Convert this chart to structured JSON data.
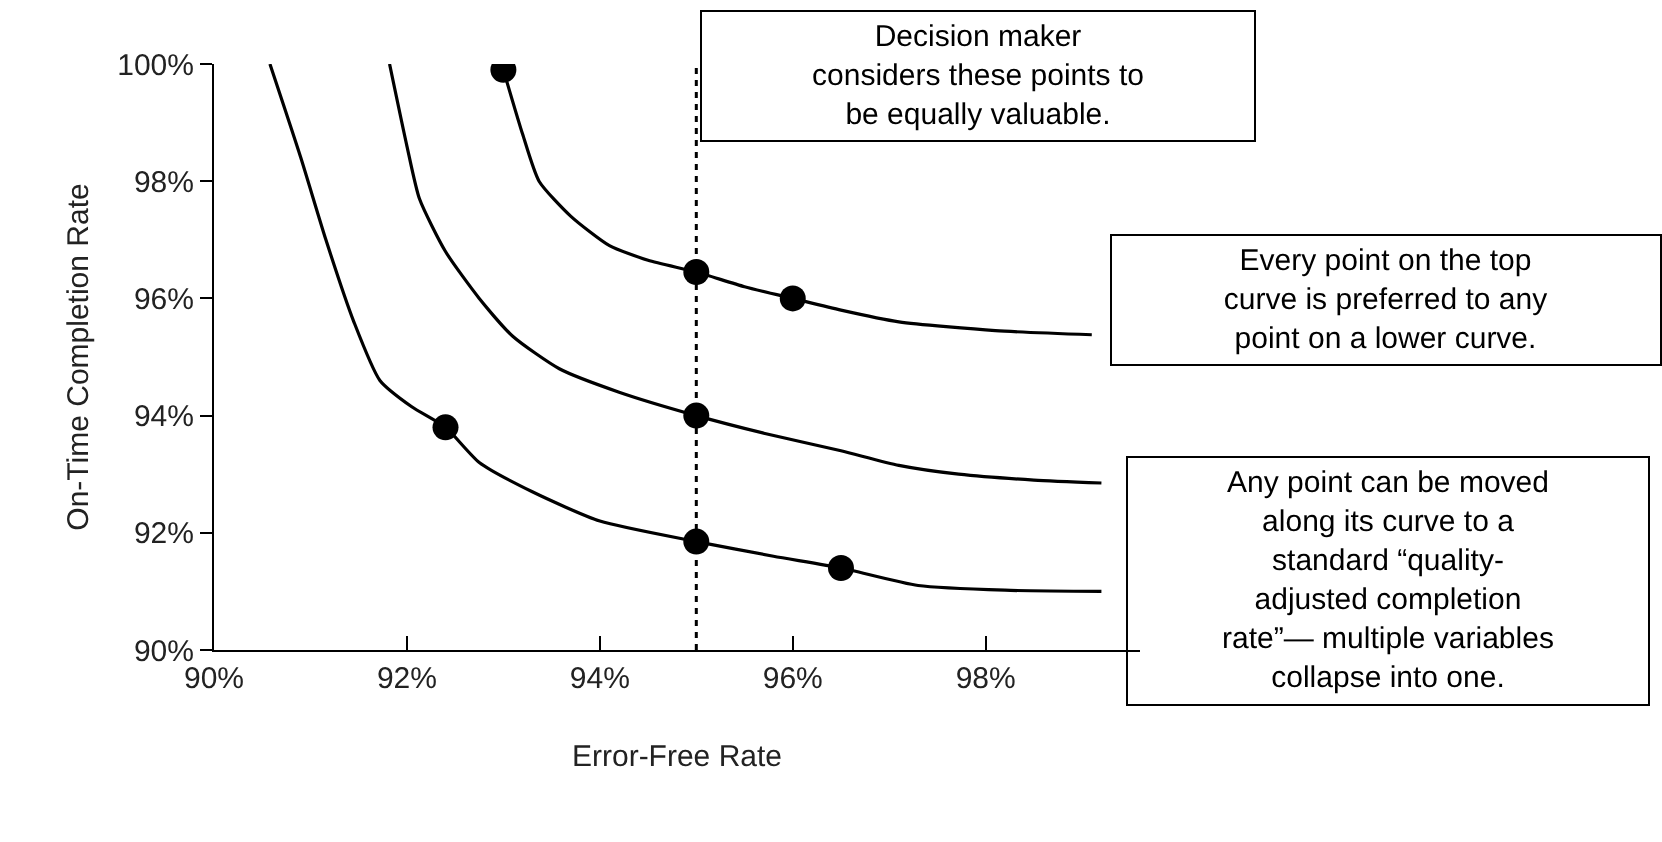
{
  "chart_data": {
    "type": "line",
    "xlabel": "Error-Free Rate",
    "ylabel": "On-Time Completion Rate",
    "xlim": [
      90,
      99.6
    ],
    "xticks": [
      {
        "value": 90,
        "label": "90%"
      },
      {
        "value": 92,
        "label": "92%"
      },
      {
        "value": 94,
        "label": "94%"
      },
      {
        "value": 96,
        "label": "96%"
      },
      {
        "value": 98,
        "label": "98%"
      }
    ],
    "ylim": [
      90,
      100
    ],
    "yticks": [
      {
        "value": 90,
        "label": "90%"
      },
      {
        "value": 92,
        "label": "92%"
      },
      {
        "value": 94,
        "label": "94%"
      },
      {
        "value": 96,
        "label": "96%"
      },
      {
        "value": 98,
        "label": "98%"
      },
      {
        "value": 100,
        "label": "100%"
      }
    ],
    "line_style": "solid",
    "series": [
      {
        "color": "#000000",
        "x": [
          90.58,
          90.9,
          91.16,
          91.45,
          91.72,
          92.05,
          92.4,
          92.75,
          93.3,
          94,
          95,
          95.8,
          96.5,
          97.3,
          98.2,
          99.2
        ],
        "values": [
          100,
          98.4,
          97.0,
          95.6,
          94.6,
          94.15,
          93.8,
          93.2,
          92.7,
          92.2,
          91.85,
          91.6,
          91.4,
          91.1,
          91.02,
          91.0
        ]
      },
      {
        "color": "#000000",
        "x": [
          91.82,
          92.0,
          92.13,
          92.4,
          92.75,
          93.1,
          93.58,
          94.2,
          95,
          95.7,
          96.5,
          97.1,
          97.72,
          98.5,
          99.2
        ],
        "values": [
          100,
          98.6,
          97.7,
          96.8,
          96.0,
          95.35,
          94.8,
          94.4,
          94.0,
          93.7,
          93.4,
          93.15,
          93.0,
          92.9,
          92.85
        ]
      },
      {
        "color": "#000000",
        "x": [
          93.0,
          93.2,
          93.37,
          93.7,
          94.1,
          94.5,
          95,
          95.5,
          96,
          96.5,
          97.1,
          98.1,
          99.1
        ],
        "values": [
          99.9,
          98.8,
          98.0,
          97.4,
          96.9,
          96.65,
          96.45,
          96.2,
          96.0,
          95.8,
          95.6,
          95.45,
          95.38
        ]
      },
      {
        "type": "scatter",
        "color": "#000000",
        "marker": "circle",
        "x": [
          93.0,
          95,
          96,
          95,
          92.4,
          95,
          96.5
        ],
        "values": [
          99.9,
          96.45,
          96.0,
          94.0,
          93.8,
          91.85,
          91.4
        ]
      }
    ],
    "ref_lines": [
      {
        "axis": "x",
        "value": 95,
        "line_style": "dotted",
        "color": "#000000"
      }
    ],
    "annotations": [
      "Decision maker\nconsiders these points to\nbe equally valuable.",
      "Every point on the top\ncurve is preferred to any\npoint on a lower curve.",
      "Any point can be moved\nalong its curve to a\nstandard “quality-\nadjusted completion\nrate”— multiple variables\ncollapse into one."
    ]
  }
}
